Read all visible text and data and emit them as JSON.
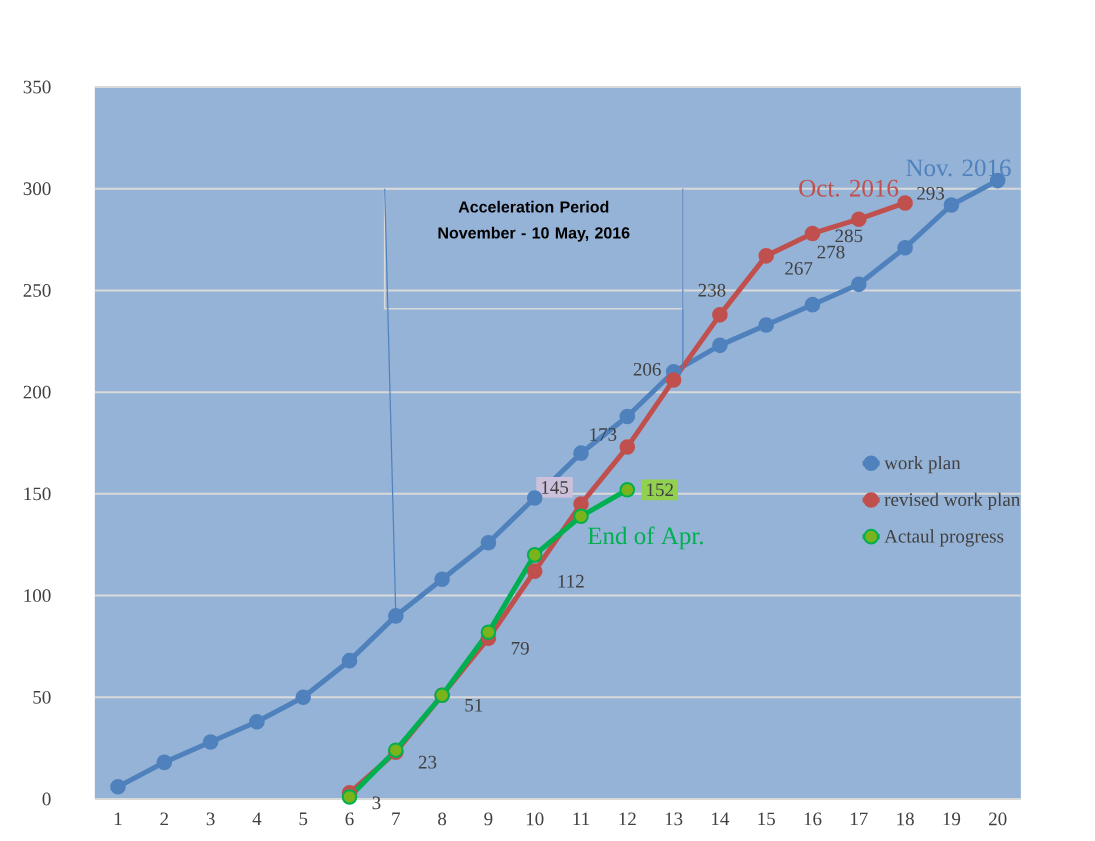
{
  "chart_data": {
    "type": "line",
    "categories": [
      "1",
      "2",
      "3",
      "4",
      "5",
      "6",
      "7",
      "8",
      "9",
      "10",
      "11",
      "12",
      "13",
      "14",
      "15",
      "16",
      "17",
      "18",
      "19",
      "20"
    ],
    "series": [
      {
        "name": "work plan",
        "color": "#4f81bd",
        "values": [
          6,
          18,
          28,
          38,
          50,
          68,
          90,
          108,
          126,
          148,
          170,
          188,
          210,
          223,
          233,
          243,
          253,
          271,
          292,
          304
        ]
      },
      {
        "name": "revised work plan",
        "color": "#c0504d",
        "values": [
          null,
          null,
          null,
          null,
          null,
          3,
          23,
          51,
          79,
          112,
          145,
          173,
          206,
          238,
          267,
          278,
          285,
          293,
          null,
          null
        ],
        "value_labels": [
          null,
          null,
          null,
          null,
          null,
          "3",
          "23",
          "51",
          "79",
          "112",
          "145",
          "173",
          "206",
          "238",
          "267",
          "278",
          "285",
          "293",
          null,
          null
        ]
      },
      {
        "name": "Actaul progress",
        "color": "#00b050",
        "values": [
          null,
          null,
          null,
          null,
          null,
          1,
          24,
          51,
          82,
          120,
          139,
          152,
          null,
          null,
          null,
          null,
          null,
          null,
          null,
          null
        ],
        "value_labels": [
          null,
          null,
          null,
          null,
          null,
          null,
          null,
          null,
          null,
          null,
          null,
          "152",
          null,
          null,
          null,
          null,
          null,
          null,
          null,
          null
        ]
      }
    ],
    "ylim": [
      0,
      350
    ],
    "yticks": [
      0,
      50,
      100,
      150,
      200,
      250,
      300,
      350
    ],
    "grid": "y",
    "legend": "right",
    "marker": "circle",
    "line_style": "solid",
    "annotations": [
      {
        "text": "End of Apr.",
        "x": "11",
        "y": 139
      },
      {
        "text": "Oct. 2016",
        "x": "18",
        "y": 293
      },
      {
        "text": "Nov. 2016",
        "x": "20",
        "y": 304
      },
      "Acceleration Period\nNovember - 10 May, 2016"
    ]
  }
}
